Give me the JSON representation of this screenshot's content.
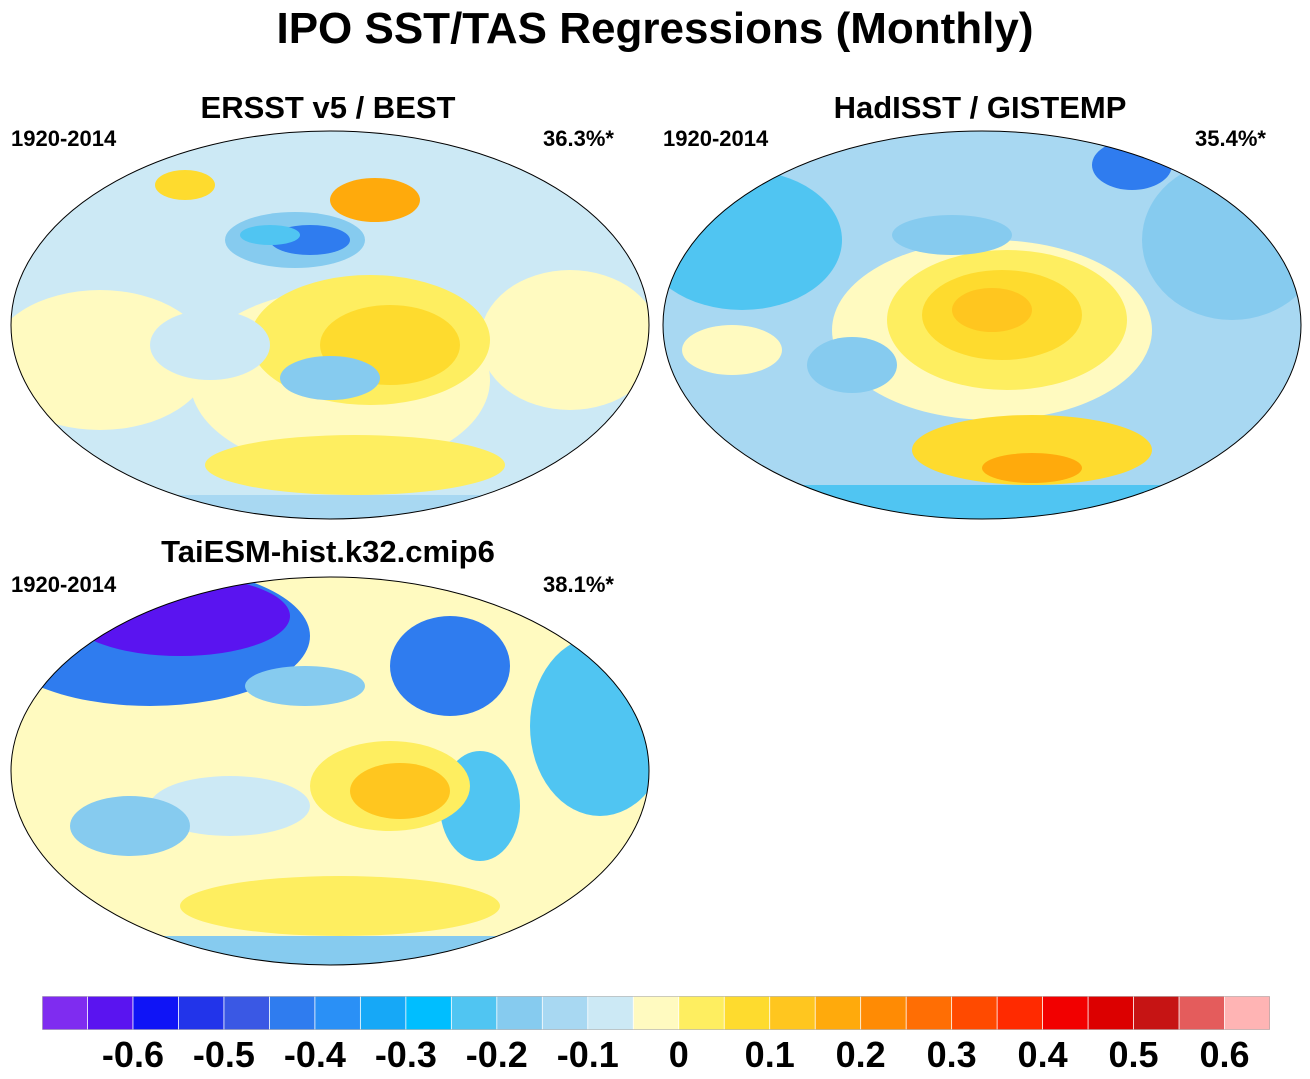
{
  "title": "IPO SST/TAS Regressions (Monthly)",
  "panels": [
    {
      "title": "ERSST v5 / BEST",
      "period": "1920-2014",
      "variance": "36.3%*"
    },
    {
      "title": "HadISST / GISTEMP",
      "period": "1920-2014",
      "variance": "35.4%*"
    },
    {
      "title": "TaiESM-hist.k32.cmip6",
      "period": "1920-2014",
      "variance": "38.1%*"
    }
  ],
  "colorbar": {
    "colors": [
      "#7f2cf0",
      "#5a14f0",
      "#0f14f6",
      "#2234ea",
      "#3a58e4",
      "#2f7cef",
      "#2a90f6",
      "#16a8f7",
      "#00beff",
      "#50c5f2",
      "#86cbef",
      "#a8d8f2",
      "#cce9f5",
      "#fffac0",
      "#feee60",
      "#fedb2e",
      "#ffc61f",
      "#ffaa0c",
      "#ff8b04",
      "#ff6e04",
      "#ff4a00",
      "#ff2a00",
      "#f20000",
      "#dc0000",
      "#c61414",
      "#e45c5c",
      "#ffb4b4"
    ],
    "tick_labels": [
      "-0.6",
      "-0.5",
      "-0.4",
      "-0.3",
      "-0.2",
      "-0.1",
      "0",
      "0.1",
      "0.2",
      "0.3",
      "0.4",
      "0.5",
      "0.6"
    ]
  }
}
